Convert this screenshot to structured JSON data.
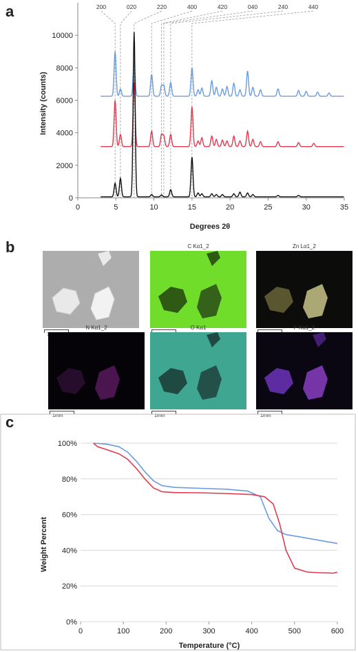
{
  "labels": {
    "a": "a",
    "b": "b",
    "c": "c"
  },
  "chart_data": [
    {
      "panel": "a",
      "type": "line",
      "xlabel": "Degrees 2θ",
      "ylabel": "Intensity (counts)",
      "xlim": [
        0,
        35
      ],
      "ylim": [
        0,
        12000
      ],
      "xticks": [
        0,
        5,
        10,
        15,
        20,
        25,
        30,
        35
      ],
      "yticks": [
        0,
        2000,
        4000,
        6000,
        8000,
        10000
      ],
      "peak_labels": [
        "200",
        "020",
        "220",
        "400",
        "420",
        "040",
        "240",
        "440"
      ],
      "peak_positions": [
        4.9,
        5.6,
        7.4,
        9.7,
        11.0,
        11.3,
        12.2,
        15.0
      ],
      "grid": false,
      "series": [
        {
          "color": "#6a9ae0",
          "baseline": 6250,
          "peaks": [
            [
              4.9,
              9000
            ],
            [
              5.6,
              6700
            ],
            [
              7.4,
              8400
            ],
            [
              9.7,
              7600
            ],
            [
              11.0,
              6900
            ],
            [
              11.3,
              6900
            ],
            [
              12.2,
              7100
            ],
            [
              15.0,
              8000
            ],
            [
              15.8,
              6650
            ],
            [
              16.3,
              6750
            ],
            [
              17.6,
              7200
            ],
            [
              18.2,
              6800
            ],
            [
              19.0,
              6700
            ],
            [
              19.6,
              6850
            ],
            [
              20.5,
              7050
            ],
            [
              21.3,
              6650
            ],
            [
              22.3,
              7800
            ],
            [
              23.0,
              6800
            ],
            [
              24.0,
              6650
            ],
            [
              26.3,
              6700
            ],
            [
              29.0,
              6600
            ],
            [
              30.0,
              6550
            ],
            [
              31.5,
              6500
            ],
            [
              33.0,
              6450
            ]
          ]
        },
        {
          "color": "#e23a50",
          "baseline": 3150,
          "peaks": [
            [
              4.9,
              6000
            ],
            [
              5.6,
              3900
            ],
            [
              7.4,
              7100
            ],
            [
              9.7,
              4100
            ],
            [
              11.0,
              3900
            ],
            [
              11.3,
              3800
            ],
            [
              12.2,
              3900
            ],
            [
              15.0,
              5600
            ],
            [
              15.8,
              3500
            ],
            [
              16.3,
              3700
            ],
            [
              17.6,
              3800
            ],
            [
              18.2,
              3600
            ],
            [
              19.0,
              3550
            ],
            [
              19.6,
              3500
            ],
            [
              20.5,
              3800
            ],
            [
              21.3,
              3500
            ],
            [
              22.3,
              4100
            ],
            [
              23.0,
              3600
            ],
            [
              24.0,
              3450
            ],
            [
              26.3,
              3450
            ],
            [
              29.0,
              3400
            ],
            [
              31.0,
              3350
            ]
          ]
        },
        {
          "color": "#111111",
          "baseline": 60,
          "peaks": [
            [
              4.9,
              900
            ],
            [
              5.6,
              1200
            ],
            [
              7.4,
              10200
            ],
            [
              9.7,
              200
            ],
            [
              11.0,
              180
            ],
            [
              12.2,
              500
            ],
            [
              15.0,
              2500
            ],
            [
              15.8,
              300
            ],
            [
              16.3,
              250
            ],
            [
              17.6,
              250
            ],
            [
              18.2,
              200
            ],
            [
              19.0,
              200
            ],
            [
              20.5,
              250
            ],
            [
              21.3,
              350
            ],
            [
              22.3,
              300
            ],
            [
              23.0,
              200
            ],
            [
              26.3,
              150
            ],
            [
              29.0,
              150
            ]
          ]
        }
      ]
    },
    {
      "panel": "c",
      "type": "line",
      "xlabel": "Temperature (°C)",
      "ylabel": "Weight Percent",
      "xlim": [
        0,
        600
      ],
      "ylim": [
        0,
        100
      ],
      "xticks": [
        0,
        100,
        200,
        300,
        400,
        500,
        600
      ],
      "yticks": [
        0,
        20,
        40,
        60,
        80,
        100
      ],
      "ytick_labels": [
        "0%",
        "20%",
        "40%",
        "60%",
        "80%",
        "100%"
      ],
      "grid": true,
      "series": [
        {
          "color": "#6a9ae0",
          "x": [
            30,
            60,
            90,
            110,
            130,
            150,
            170,
            190,
            220,
            280,
            340,
            390,
            420,
            440,
            460,
            480,
            520,
            560,
            600
          ],
          "y": [
            100,
            99.5,
            98,
            95,
            90,
            84,
            79,
            76.2,
            75.2,
            74.7,
            74.2,
            73.2,
            70,
            58,
            51,
            48.8,
            47.2,
            45.5,
            43.8
          ]
        },
        {
          "color": "#e23a50",
          "x": [
            30,
            40,
            60,
            90,
            110,
            130,
            150,
            170,
            190,
            220,
            280,
            340,
            400,
            430,
            450,
            465,
            480,
            500,
            530,
            560,
            590,
            600
          ],
          "y": [
            100,
            98,
            96.5,
            94,
            91,
            86,
            80,
            75,
            72.8,
            72.3,
            72.2,
            71.8,
            71.2,
            70,
            66,
            55,
            40,
            30,
            27.8,
            27.4,
            27.2,
            27.7
          ]
        }
      ]
    }
  ],
  "eds": [
    {
      "title": "",
      "scale": "1mm"
    },
    {
      "title": "C Kα1_2",
      "scale": "1mm"
    },
    {
      "title": "Zn Lα1_2",
      "scale": "1mm"
    },
    {
      "title": "N Kα1_2",
      "scale": "1mm"
    },
    {
      "title": "O Kα1",
      "scale": "1mm"
    },
    {
      "title": "F Kα1_2",
      "scale": "1mm"
    }
  ]
}
